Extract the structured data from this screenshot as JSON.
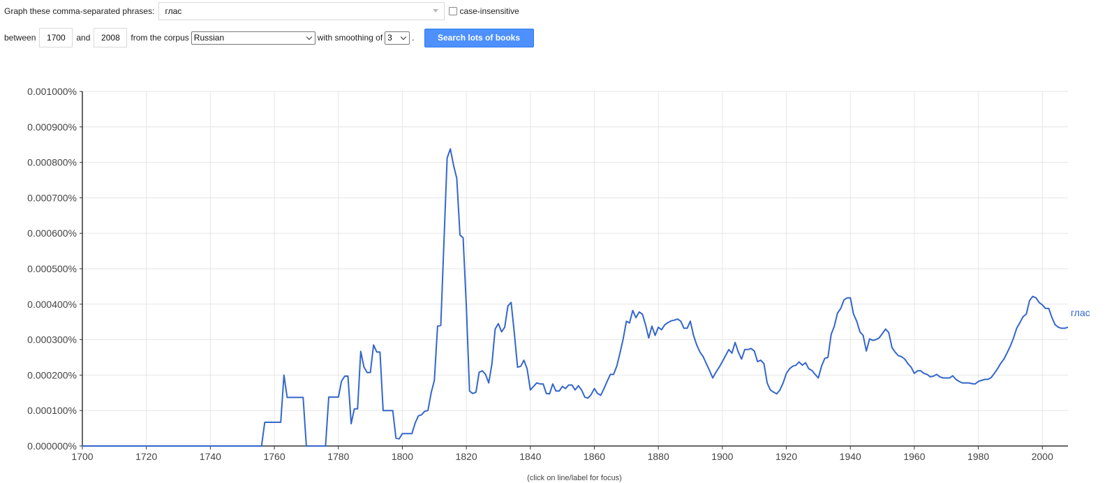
{
  "controls": {
    "phrases_label": "Graph these comma-separated phrases:",
    "phrases_value": "глас",
    "case_insensitive_label": "case-insensitive",
    "between_label": "between",
    "year_start": "1700",
    "and_label": "and",
    "year_end": "2008",
    "corpus_label": "from the corpus",
    "corpus_value": "Russian",
    "smoothing_label": "with smoothing of",
    "smoothing_value": "3",
    "period": ".",
    "search_button": "Search lots of books"
  },
  "chart_data": {
    "type": "line",
    "title": "",
    "xlabel": "",
    "ylabel": "",
    "xlim": [
      1700,
      2008
    ],
    "ylim": [
      0,
      0.001
    ],
    "x_ticks": [
      "1700",
      "1720",
      "1740",
      "1760",
      "1780",
      "1800",
      "1820",
      "1840",
      "1860",
      "1880",
      "1900",
      "1920",
      "1940",
      "1960",
      "1980",
      "2000"
    ],
    "y_ticks": [
      "0.000000%",
      "0.000100%",
      "0.000200%",
      "0.000300%",
      "0.000400%",
      "0.000500%",
      "0.000600%",
      "0.000700%",
      "0.000800%",
      "0.000900%",
      "0.001000%"
    ],
    "grid": true,
    "note": "(click on line/label for focus)",
    "series": [
      {
        "name": "глас",
        "color": "#3366cc",
        "points": [
          [
            1700,
            0
          ],
          [
            1756,
            0
          ],
          [
            1757,
            6.7e-05
          ],
          [
            1762,
            6.7e-05
          ],
          [
            1763,
            0.0002
          ],
          [
            1764,
            0.000137
          ],
          [
            1769,
            0.000137
          ],
          [
            1770,
            0
          ],
          [
            1776,
            0
          ],
          [
            1777,
            0.000138
          ],
          [
            1780,
            0.000138
          ],
          [
            1781,
            0.000183
          ],
          [
            1782,
            0.000197
          ],
          [
            1783,
            0.000197
          ],
          [
            1784,
            6.3e-05
          ],
          [
            1785,
            0.000105
          ],
          [
            1786,
            0.000105
          ],
          [
            1787,
            0.000267
          ],
          [
            1788,
            0.000223
          ],
          [
            1789,
            0.000207
          ],
          [
            1790,
            0.000207
          ],
          [
            1791,
            0.000285
          ],
          [
            1792,
            0.000265
          ],
          [
            1793,
            0.000265
          ],
          [
            1794,
            0.0001
          ],
          [
            1797,
            0.0001
          ],
          [
            1798,
            2.2e-05
          ],
          [
            1799,
            2e-05
          ],
          [
            1800,
            3.5e-05
          ],
          [
            1803,
            3.5e-05
          ],
          [
            1804,
            6.5e-05
          ],
          [
            1805,
            8.5e-05
          ],
          [
            1806,
            8.8e-05
          ],
          [
            1807,
            9.8e-05
          ],
          [
            1808,
            0.0001
          ],
          [
            1809,
            0.00015
          ],
          [
            1810,
            0.000185
          ],
          [
            1811,
            0.000338
          ],
          [
            1812,
            0.00034
          ],
          [
            1814,
            0.000812
          ],
          [
            1815,
            0.000838
          ],
          [
            1816,
            0.000792
          ],
          [
            1817,
            0.000755
          ],
          [
            1818,
            0.000595
          ],
          [
            1819,
            0.000587
          ],
          [
            1820,
            0.000395
          ],
          [
            1821,
            0.000155
          ],
          [
            1822,
            0.000148
          ],
          [
            1823,
            0.000152
          ],
          [
            1824,
            0.000208
          ],
          [
            1825,
            0.000212
          ],
          [
            1826,
            0.000202
          ],
          [
            1827,
            0.000178
          ],
          [
            1828,
            0.000232
          ],
          [
            1829,
            0.00033
          ],
          [
            1830,
            0.000345
          ],
          [
            1831,
            0.000322
          ],
          [
            1832,
            0.000335
          ],
          [
            1833,
            0.000395
          ],
          [
            1834,
            0.000405
          ],
          [
            1835,
            0.000318
          ],
          [
            1836,
            0.000222
          ],
          [
            1837,
            0.000225
          ],
          [
            1838,
            0.000242
          ],
          [
            1839,
            0.000218
          ],
          [
            1840,
            0.000158
          ],
          [
            1841,
            0.000168
          ],
          [
            1842,
            0.000178
          ],
          [
            1843,
            0.000175
          ],
          [
            1844,
            0.000175
          ],
          [
            1845,
            0.000148
          ],
          [
            1846,
            0.000147
          ],
          [
            1847,
            0.000175
          ],
          [
            1848,
            0.000155
          ],
          [
            1849,
            0.000155
          ],
          [
            1850,
            0.000168
          ],
          [
            1851,
            0.000162
          ],
          [
            1852,
            0.000172
          ],
          [
            1853,
            0.000172
          ],
          [
            1854,
            0.000158
          ],
          [
            1855,
            0.00017
          ],
          [
            1856,
            0.000158
          ],
          [
            1857,
            0.000138
          ],
          [
            1858,
            0.000135
          ],
          [
            1859,
            0.000145
          ],
          [
            1860,
            0.000162
          ],
          [
            1861,
            0.000148
          ],
          [
            1862,
            0.000143
          ],
          [
            1863,
            0.000162
          ],
          [
            1864,
            0.000182
          ],
          [
            1865,
            0.000202
          ],
          [
            1866,
            0.000202
          ],
          [
            1867,
            0.000225
          ],
          [
            1868,
            0.000262
          ],
          [
            1869,
            0.000302
          ],
          [
            1870,
            0.000352
          ],
          [
            1871,
            0.000347
          ],
          [
            1872,
            0.000382
          ],
          [
            1873,
            0.000362
          ],
          [
            1874,
            0.000378
          ],
          [
            1875,
            0.000372
          ],
          [
            1876,
            0.000342
          ],
          [
            1877,
            0.000305
          ],
          [
            1878,
            0.000338
          ],
          [
            1879,
            0.000312
          ],
          [
            1880,
            0.000335
          ],
          [
            1881,
            0.000328
          ],
          [
            1882,
            0.000342
          ],
          [
            1883,
            0.000348
          ],
          [
            1884,
            0.000353
          ],
          [
            1885,
            0.000355
          ],
          [
            1886,
            0.000358
          ],
          [
            1887,
            0.000352
          ],
          [
            1888,
            0.000332
          ],
          [
            1889,
            0.000332
          ],
          [
            1890,
            0.000352
          ],
          [
            1891,
            0.000312
          ],
          [
            1892,
            0.000285
          ],
          [
            1893,
            0.000265
          ],
          [
            1894,
            0.000252
          ],
          [
            1895,
            0.000232
          ],
          [
            1896,
            0.000213
          ],
          [
            1897,
            0.000192
          ],
          [
            1898,
            0.000208
          ],
          [
            1899,
            0.000222
          ],
          [
            1900,
            0.000238
          ],
          [
            1901,
            0.000255
          ],
          [
            1902,
            0.000272
          ],
          [
            1903,
            0.000262
          ],
          [
            1904,
            0.000292
          ],
          [
            1905,
            0.000265
          ],
          [
            1906,
            0.000245
          ],
          [
            1907,
            0.000272
          ],
          [
            1908,
            0.000272
          ],
          [
            1909,
            0.000275
          ],
          [
            1910,
            0.000268
          ],
          [
            1911,
            0.000238
          ],
          [
            1912,
            0.000242
          ],
          [
            1913,
            0.000232
          ],
          [
            1914,
            0.000178
          ],
          [
            1915,
            0.000158
          ],
          [
            1916,
            0.000152
          ],
          [
            1917,
            0.000147
          ],
          [
            1918,
            0.000158
          ],
          [
            1919,
            0.000178
          ],
          [
            1920,
            0.000205
          ],
          [
            1921,
            0.000218
          ],
          [
            1922,
            0.000225
          ],
          [
            1923,
            0.000228
          ],
          [
            1924,
            0.000237
          ],
          [
            1925,
            0.000228
          ],
          [
            1926,
            0.000235
          ],
          [
            1927,
            0.000218
          ],
          [
            1928,
            0.000213
          ],
          [
            1929,
            0.000202
          ],
          [
            1930,
            0.000192
          ],
          [
            1931,
            0.000225
          ],
          [
            1932,
            0.000247
          ],
          [
            1933,
            0.00025
          ],
          [
            1934,
            0.000315
          ],
          [
            1935,
            0.000338
          ],
          [
            1936,
            0.000375
          ],
          [
            1937,
            0.000388
          ],
          [
            1938,
            0.000412
          ],
          [
            1939,
            0.000418
          ],
          [
            1940,
            0.000418
          ],
          [
            1941,
            0.000372
          ],
          [
            1942,
            0.000352
          ],
          [
            1943,
            0.000322
          ],
          [
            1944,
            0.000312
          ],
          [
            1945,
            0.000268
          ],
          [
            1946,
            0.000302
          ],
          [
            1947,
            0.000298
          ],
          [
            1948,
            0.0003
          ],
          [
            1949,
            0.000305
          ],
          [
            1950,
            0.000317
          ],
          [
            1951,
            0.00033
          ],
          [
            1952,
            0.00032
          ],
          [
            1953,
            0.000278
          ],
          [
            1954,
            0.000265
          ],
          [
            1955,
            0.000255
          ],
          [
            1956,
            0.000252
          ],
          [
            1957,
            0.000245
          ],
          [
            1958,
            0.000232
          ],
          [
            1959,
            0.000222
          ],
          [
            1960,
            0.000205
          ],
          [
            1961,
            0.000212
          ],
          [
            1962,
            0.000212
          ],
          [
            1963,
            0.000205
          ],
          [
            1964,
            0.000202
          ],
          [
            1965,
            0.000195
          ],
          [
            1966,
            0.000197
          ],
          [
            1967,
            0.000202
          ],
          [
            1968,
            0.000195
          ],
          [
            1969,
            0.000192
          ],
          [
            1970,
            0.000192
          ],
          [
            1971,
            0.000192
          ],
          [
            1972,
            0.000198
          ],
          [
            1973,
            0.000188
          ],
          [
            1974,
            0.000182
          ],
          [
            1975,
            0.000178
          ],
          [
            1976,
            0.000178
          ],
          [
            1977,
            0.000178
          ],
          [
            1978,
            0.000176
          ],
          [
            1979,
            0.000175
          ],
          [
            1980,
            0.000182
          ],
          [
            1981,
            0.000185
          ],
          [
            1982,
            0.000188
          ],
          [
            1983,
            0.000188
          ],
          [
            1984,
            0.000193
          ],
          [
            1985,
            0.000205
          ],
          [
            1986,
            0.000218
          ],
          [
            1987,
            0.000233
          ],
          [
            1988,
            0.000245
          ],
          [
            1989,
            0.000263
          ],
          [
            1990,
            0.000282
          ],
          [
            1991,
            0.000305
          ],
          [
            1992,
            0.000332
          ],
          [
            1993,
            0.000348
          ],
          [
            1994,
            0.000365
          ],
          [
            1995,
            0.000372
          ],
          [
            1996,
            0.00041
          ],
          [
            1997,
            0.000422
          ],
          [
            1998,
            0.000418
          ],
          [
            1999,
            0.000405
          ],
          [
            2000,
            0.000398
          ],
          [
            2001,
            0.000388
          ],
          [
            2002,
            0.000388
          ],
          [
            2003,
            0.000362
          ],
          [
            2004,
            0.000342
          ],
          [
            2005,
            0.000335
          ],
          [
            2006,
            0.000332
          ],
          [
            2007,
            0.000332
          ],
          [
            2008,
            0.000335
          ]
        ]
      }
    ]
  }
}
